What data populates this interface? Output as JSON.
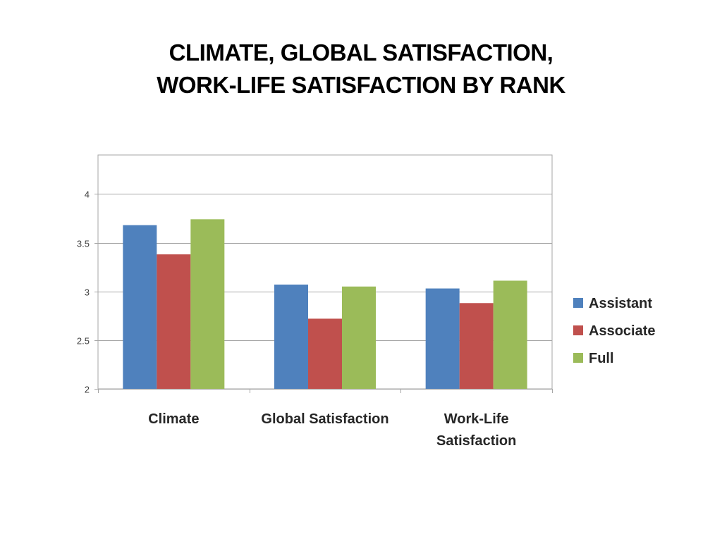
{
  "slide": {
    "title_line1": "CLIMATE, GLOBAL SATISFACTION,",
    "title_line2": "WORK-LIFE SATISFACTION BY RANK"
  },
  "chart_data": {
    "type": "bar",
    "categories": [
      "Climate",
      "Global Satisfaction",
      "Work-Life Satisfaction"
    ],
    "category_label_lines": [
      [
        "Climate"
      ],
      [
        "Global Satisfaction"
      ],
      [
        "Work-Life",
        "Satisfaction"
      ]
    ],
    "series": [
      {
        "name": "Assistant",
        "color": "#4F81BD",
        "values": [
          3.68,
          3.07,
          3.03
        ]
      },
      {
        "name": "Associate",
        "color": "#C0504D",
        "values": [
          3.38,
          2.72,
          2.88
        ]
      },
      {
        "name": "Full",
        "color": "#9BBB59",
        "values": [
          3.74,
          3.05,
          3.11
        ]
      }
    ],
    "ylim": [
      2,
      4.4
    ],
    "yticks": [
      2,
      2.5,
      3,
      3.5,
      4
    ],
    "ytick_labels": [
      "2",
      "2.5",
      "3",
      "3.5",
      "4"
    ],
    "grid": true,
    "legend_position": "right",
    "xlabel": "",
    "ylabel": ""
  }
}
